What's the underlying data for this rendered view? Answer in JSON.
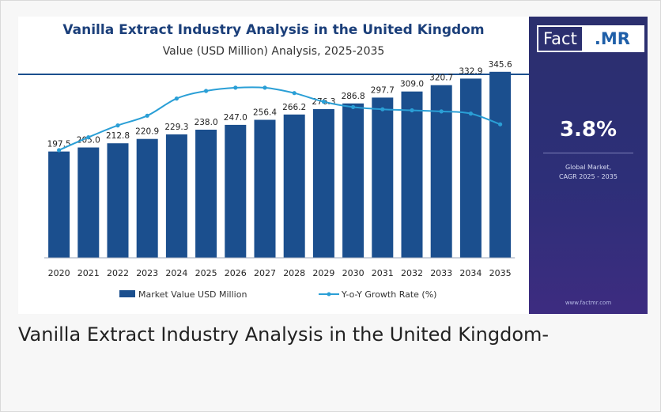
{
  "chart_data": {
    "type": "bar",
    "title": "Vanilla Extract Industry Analysis in the United Kingdom",
    "subtitle": "Value (USD Million) Analysis, 2025-2035",
    "categories": [
      "2020",
      "2021",
      "2022",
      "2023",
      "2024",
      "2025",
      "2026",
      "2027",
      "2028",
      "2029",
      "2030",
      "2031",
      "2032",
      "2033",
      "2034",
      "2035"
    ],
    "series": [
      {
        "name": "Market Value USD Million",
        "type": "bar",
        "color": "#1b4f8e",
        "values": [
          197.5,
          205.0,
          212.8,
          220.9,
          229.3,
          238.0,
          247.0,
          256.4,
          266.2,
          276.3,
          286.8,
          297.7,
          309.0,
          320.7,
          332.9,
          345.6
        ],
        "labels": [
          "197.5",
          "205.0",
          "212.8",
          "220.9",
          "229.3",
          "238.0",
          "247.0",
          "256.4",
          "266.2",
          "276.3",
          "286.8",
          "297.7",
          "309.0",
          "320.7",
          "332.9",
          "345.6"
        ]
      },
      {
        "name": "Y-o-Y Growth Rate (%)",
        "type": "line",
        "color": "#2a9fd6",
        "values": [
          3.5,
          3.62,
          3.73,
          3.82,
          3.98,
          4.05,
          4.08,
          4.08,
          4.03,
          3.95,
          3.9,
          3.88,
          3.87,
          3.86,
          3.84,
          3.74
        ]
      }
    ],
    "bar_ylim": [
      0,
      360
    ],
    "line_ylim": [
      2.5,
      4.3
    ],
    "legend_position": "bottom",
    "grid": false
  },
  "sidebar": {
    "logo_left": "Fact",
    "logo_right": ".MR",
    "cagr_value": "3.8%",
    "cagr_label_line1": "Global Market,",
    "cagr_label_line2": "CAGR 2025 - 2035",
    "website": "www.factmr.com"
  },
  "caption": "Vanilla Extract Industry Analysis in the United Kingdom-",
  "colors": {
    "bar": "#1b4f8e",
    "line": "#2a9fd6",
    "title": "#1b3f7a",
    "sidebar": "#2d2f78"
  }
}
